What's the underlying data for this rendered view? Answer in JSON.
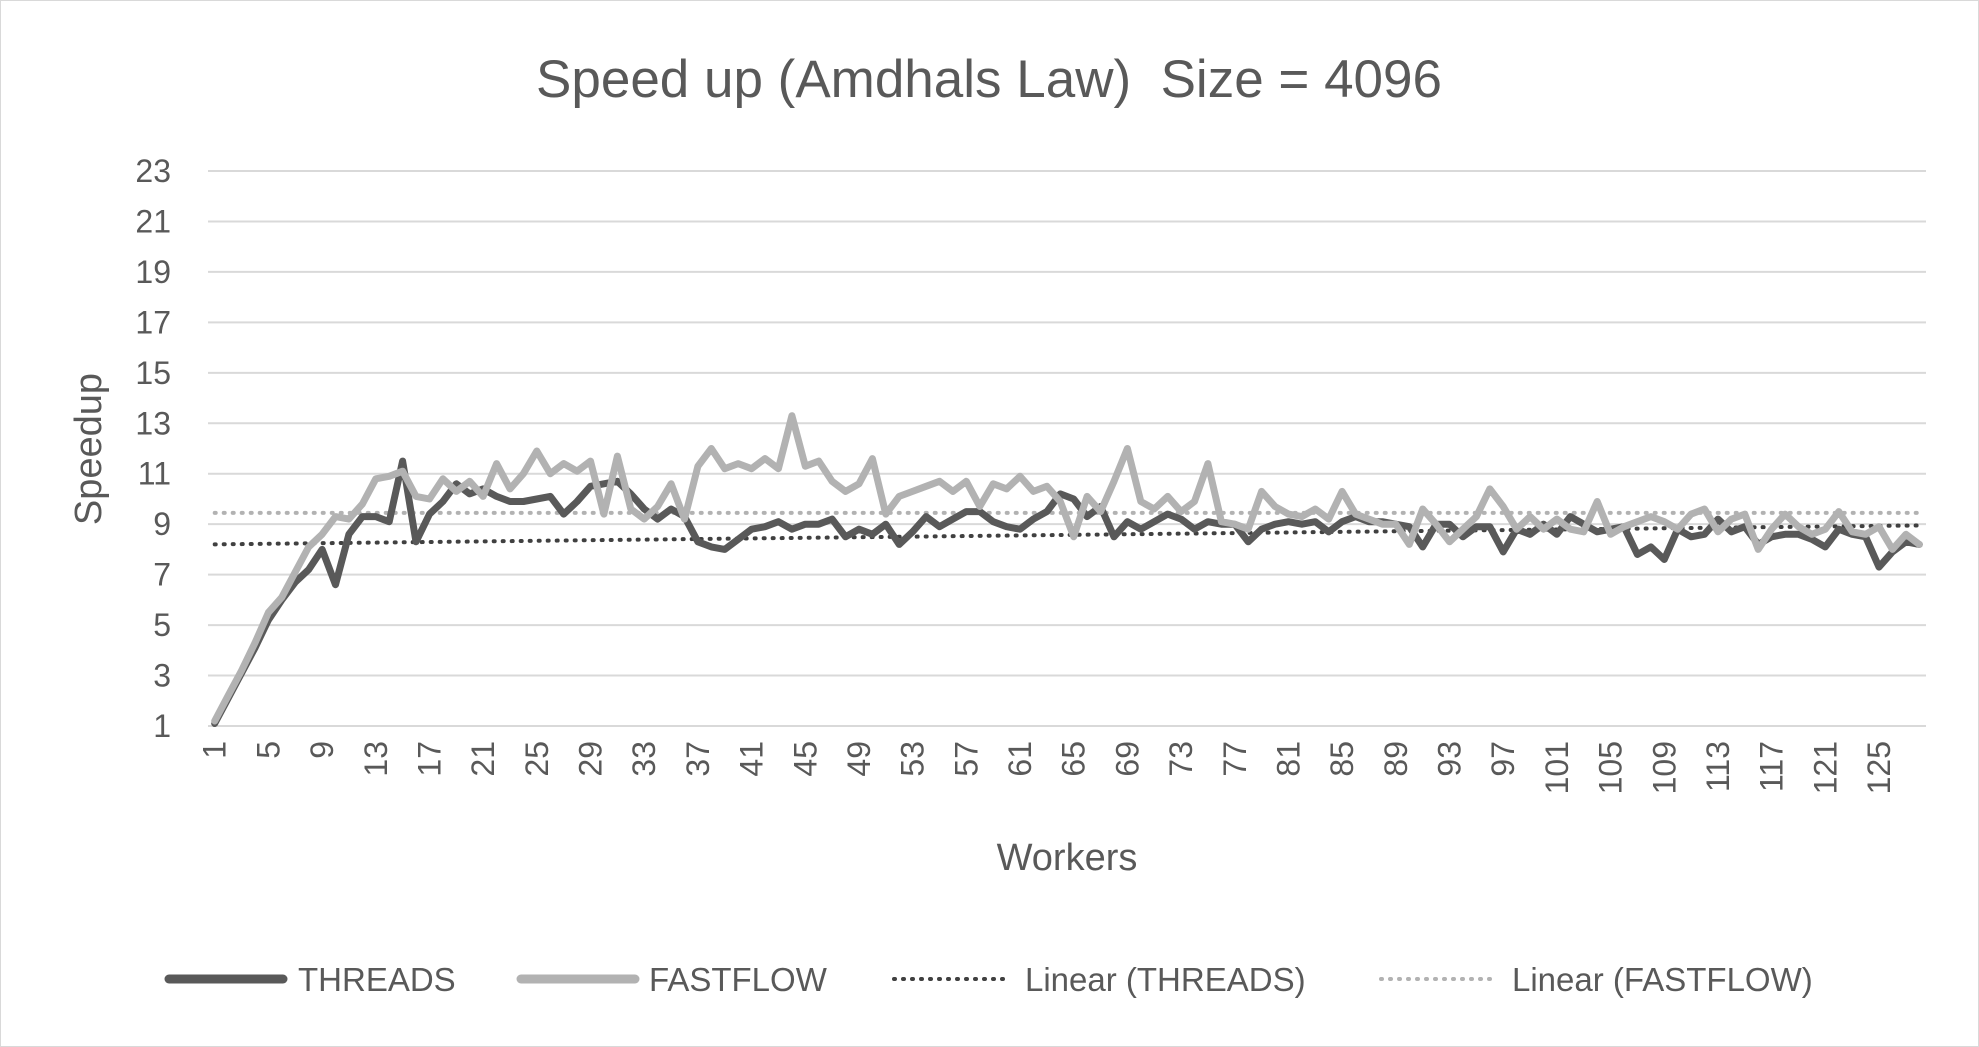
{
  "chart_data": {
    "type": "line",
    "title": "Speed up (Amdhals Law)  Size = 4096",
    "xlabel": "Workers",
    "ylabel": "Speedup",
    "ylim": [
      1,
      23
    ],
    "yticks": [
      1,
      3,
      5,
      7,
      9,
      11,
      13,
      15,
      17,
      19,
      21,
      23
    ],
    "xticks": [
      1,
      5,
      9,
      13,
      17,
      21,
      25,
      29,
      33,
      37,
      41,
      45,
      49,
      53,
      57,
      61,
      65,
      69,
      73,
      77,
      81,
      85,
      89,
      93,
      97,
      101,
      105,
      109,
      113,
      117,
      121,
      125
    ],
    "grid": true,
    "legend_position": "bottom",
    "x_range": [
      1,
      128
    ],
    "series": [
      {
        "name": "THREADS",
        "style": "solid",
        "color": "#595959",
        "values": [
          1.1,
          2.1,
          3.1,
          4.1,
          5.2,
          6.0,
          6.7,
          7.2,
          8.0,
          6.6,
          8.6,
          9.3,
          9.3,
          9.1,
          11.5,
          8.3,
          9.4,
          9.9,
          10.6,
          10.2,
          10.4,
          10.1,
          9.9,
          9.9,
          10.0,
          10.1,
          9.4,
          9.9,
          10.5,
          10.6,
          10.7,
          10.2,
          9.6,
          9.2,
          9.6,
          9.3,
          8.3,
          8.1,
          8.0,
          8.4,
          8.8,
          8.9,
          9.1,
          8.8,
          9.0,
          9.0,
          9.2,
          8.5,
          8.8,
          8.6,
          9.0,
          8.2,
          8.7,
          9.3,
          8.9,
          9.2,
          9.5,
          9.5,
          9.1,
          8.9,
          8.8,
          9.2,
          9.5,
          10.2,
          10.0,
          9.3,
          9.7,
          8.5,
          9.1,
          8.8,
          9.1,
          9.4,
          9.2,
          8.8,
          9.1,
          9.0,
          9.0,
          8.3,
          8.8,
          9.0,
          9.1,
          9.0,
          9.1,
          8.7,
          9.1,
          9.3,
          9.1,
          9.1,
          9.0,
          8.9,
          8.1,
          9.0,
          9.0,
          8.5,
          8.9,
          8.9,
          7.9,
          8.8,
          8.6,
          9.0,
          8.6,
          9.3,
          9.0,
          8.7,
          8.8,
          8.9,
          7.8,
          8.1,
          7.6,
          8.8,
          8.5,
          8.6,
          9.2,
          8.7,
          8.9,
          8.2,
          8.5,
          8.6,
          8.6,
          8.4,
          8.1,
          8.8,
          8.6,
          8.5,
          7.3,
          7.9,
          8.3,
          8.2
        ]
      },
      {
        "name": "FASTFLOW",
        "style": "solid",
        "color": "#b2b2b2",
        "values": [
          1.2,
          2.2,
          3.2,
          4.3,
          5.5,
          6.1,
          7.1,
          8.1,
          8.6,
          9.3,
          9.2,
          9.8,
          10.8,
          10.9,
          11.1,
          10.1,
          10.0,
          10.8,
          10.3,
          10.7,
          10.1,
          11.4,
          10.4,
          11.0,
          11.9,
          11.0,
          11.4,
          11.1,
          11.5,
          9.4,
          11.7,
          9.6,
          9.2,
          9.7,
          10.6,
          9.2,
          11.3,
          12.0,
          11.2,
          11.4,
          11.2,
          11.6,
          11.2,
          13.3,
          11.3,
          11.5,
          10.7,
          10.3,
          10.6,
          11.6,
          9.4,
          10.1,
          10.3,
          10.5,
          10.7,
          10.3,
          10.7,
          9.7,
          10.6,
          10.4,
          10.9,
          10.3,
          10.5,
          9.9,
          8.5,
          10.1,
          9.5,
          10.7,
          12.0,
          9.9,
          9.6,
          10.1,
          9.5,
          9.9,
          11.4,
          9.1,
          9.0,
          8.8,
          10.3,
          9.7,
          9.4,
          9.3,
          9.6,
          9.2,
          10.3,
          9.4,
          9.2,
          9.0,
          9.0,
          8.2,
          9.6,
          9.0,
          8.3,
          8.8,
          9.3,
          10.4,
          9.7,
          8.8,
          9.3,
          8.8,
          9.2,
          8.8,
          8.7,
          9.9,
          8.6,
          8.9,
          9.1,
          9.3,
          9.1,
          8.8,
          9.4,
          9.6,
          8.7,
          9.2,
          9.4,
          8.0,
          8.8,
          9.4,
          8.9,
          8.6,
          8.8,
          9.5,
          8.7,
          8.6,
          8.9,
          8.0,
          8.6,
          8.2
        ]
      },
      {
        "name": "Linear (THREADS)",
        "style": "dotted",
        "color": "#404040",
        "trend": [
          8.2,
          8.95
        ]
      },
      {
        "name": "Linear (FASTFLOW)",
        "style": "dotted",
        "color": "#b2b2b2",
        "trend": [
          9.45,
          9.45
        ]
      }
    ]
  }
}
